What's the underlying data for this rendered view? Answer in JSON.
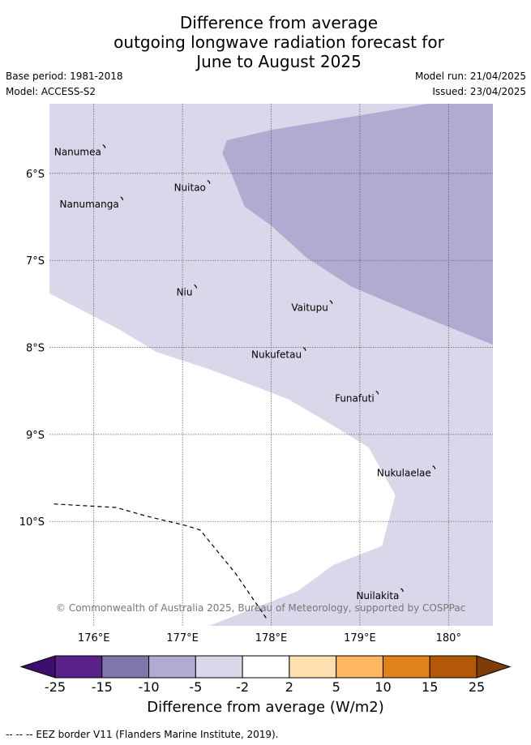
{
  "title": {
    "line1": "Difference from average",
    "line2": "outgoing longwave radiation forecast for",
    "line3": "June to August 2025"
  },
  "meta": {
    "base_period": "Base period: 1981-2018",
    "model": "Model: ACCESS-S2",
    "model_run": "Model run: 21/04/2025",
    "issued": "Issued: 23/04/2025"
  },
  "map": {
    "lon_range": [
      175.5,
      180.5
    ],
    "lat_range": [
      -5.2,
      -11.2
    ],
    "lon_ticks": [
      176,
      177,
      178,
      179,
      180
    ],
    "lat_ticks": [
      -6,
      -7,
      -8,
      -9,
      -10
    ],
    "lon_tick_labels": [
      "176°E",
      "177°E",
      "178°E",
      "179°E",
      "180°"
    ],
    "lat_tick_labels": [
      "6°S",
      "7°S",
      "8°S",
      "9°S",
      "10°S"
    ],
    "places": [
      {
        "name": "Nanumea",
        "lon": 176.12,
        "lat": -5.69
      },
      {
        "name": "Nuitao",
        "lon": 177.3,
        "lat": -6.1
      },
      {
        "name": "Nanumanga",
        "lon": 176.32,
        "lat": -6.29
      },
      {
        "name": "Niu",
        "lon": 177.15,
        "lat": -7.3
      },
      {
        "name": "Vaitupu",
        "lon": 178.68,
        "lat": -7.48
      },
      {
        "name": "Nukufetau",
        "lon": 178.38,
        "lat": -8.02
      },
      {
        "name": "Funafuti",
        "lon": 179.2,
        "lat": -8.52
      },
      {
        "name": "Nukulaelae",
        "lon": 179.84,
        "lat": -9.38
      },
      {
        "name": "Nuilakita",
        "lon": 179.48,
        "lat": -10.79
      }
    ],
    "copyright": "© Commonwealth of Australia 2025, Bureau of Meteorology, supported by COSPPac",
    "colors": {
      "light_lavender": "#d8d8ea",
      "mid_lavender": "#b1aad1"
    },
    "regions": [
      {
        "category": "-5 to -2",
        "color": "#d8d8ea",
        "polygon": [
          [
            175.5,
            -5.2
          ],
          [
            180.5,
            -5.2
          ],
          [
            180.5,
            -11.2
          ],
          [
            177.3,
            -11.2
          ],
          [
            178.3,
            -10.8
          ],
          [
            178.7,
            -10.5
          ],
          [
            179.25,
            -10.28
          ],
          [
            179.4,
            -9.7
          ],
          [
            179.1,
            -9.15
          ],
          [
            178.7,
            -8.9
          ],
          [
            178.2,
            -8.6
          ],
          [
            177.9,
            -8.48
          ],
          [
            177.3,
            -8.25
          ],
          [
            176.7,
            -8.05
          ],
          [
            176.3,
            -7.8
          ],
          [
            175.5,
            -7.38
          ]
        ]
      },
      {
        "category": "-10 to -5",
        "color": "#b1aad1",
        "polygon": [
          [
            177.5,
            -5.62
          ],
          [
            178.0,
            -5.5
          ],
          [
            179.2,
            -5.3
          ],
          [
            180.5,
            -5.07
          ],
          [
            180.5,
            -7.97
          ],
          [
            179.6,
            -7.6
          ],
          [
            178.9,
            -7.3
          ],
          [
            178.4,
            -6.97
          ],
          [
            178.0,
            -6.6
          ],
          [
            177.7,
            -6.38
          ],
          [
            177.55,
            -6.0
          ],
          [
            177.45,
            -5.77
          ]
        ]
      }
    ],
    "eez_border": [
      [
        175.55,
        -9.8
      ],
      [
        176.25,
        -9.84
      ],
      [
        176.6,
        -9.94
      ],
      [
        177.05,
        -10.05
      ],
      [
        177.2,
        -10.1
      ],
      [
        177.6,
        -10.6
      ],
      [
        177.95,
        -11.12
      ]
    ]
  },
  "colorbar": {
    "title": "Difference from average (W/m2)",
    "tick_labels": [
      "-25",
      "-15",
      "-10",
      "-5",
      "-2",
      "2",
      "5",
      "10",
      "15",
      "25"
    ],
    "colors": [
      "#3f0d6b",
      "#59228b",
      "#8076ae",
      "#b1aad1",
      "#d8d8ea",
      "#ffffff",
      "#fedfb0",
      "#fdb85f",
      "#e0821a",
      "#b35806",
      "#7f3b08"
    ]
  },
  "legend": {
    "eez_text": "-- -- -- EEZ border V11 (Flanders Marine Institute, 2019)."
  }
}
